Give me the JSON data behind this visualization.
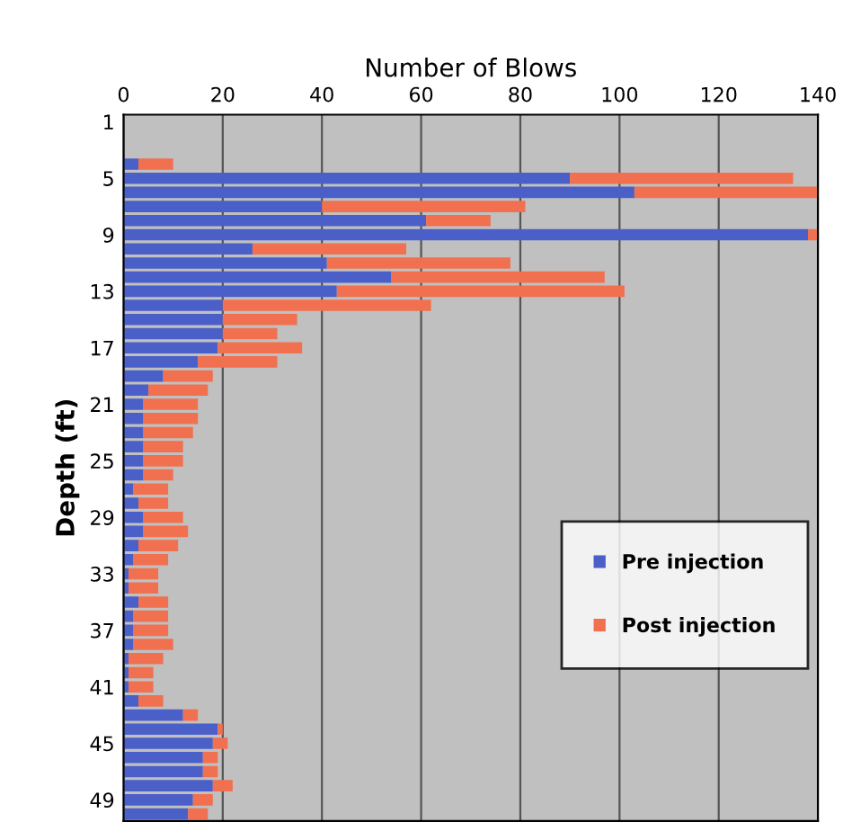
{
  "chart_data": {
    "type": "bar",
    "orientation": "horizontal",
    "stacked": true,
    "xlabel": "Number of Blows",
    "ylabel": "Depth (ft)",
    "categories": [
      "1",
      null,
      null,
      null,
      "5",
      null,
      null,
      null,
      "9",
      null,
      null,
      null,
      "13",
      null,
      null,
      null,
      "17",
      null,
      null,
      null,
      "21",
      null,
      null,
      null,
      "25",
      null,
      null,
      null,
      "29",
      null,
      null,
      null,
      "33",
      null,
      null,
      null,
      "37",
      null,
      null,
      null,
      "41",
      null,
      null,
      null,
      "45",
      null,
      null,
      null,
      "49",
      null
    ],
    "series": [
      {
        "name": "Pre injection",
        "color": "#4a5fc8",
        "values": [
          0,
          0,
          0,
          3,
          90,
          103,
          40,
          61,
          138,
          26,
          41,
          54,
          43,
          20,
          20,
          20,
          19,
          15,
          8,
          5,
          4,
          4,
          4,
          4,
          4,
          4,
          2,
          3,
          4,
          4,
          3,
          2,
          1,
          1,
          3,
          2,
          2,
          2,
          1,
          1,
          1,
          3,
          12,
          19,
          18,
          16,
          16,
          18,
          14,
          13
        ]
      },
      {
        "name": "Post injection",
        "color": "#f07050",
        "values": [
          0,
          0,
          0,
          7,
          45,
          37,
          41,
          13,
          2,
          31,
          37,
          43,
          58,
          42,
          15,
          11,
          17,
          16,
          10,
          12,
          11,
          11,
          10,
          8,
          8,
          6,
          7,
          6,
          8,
          9,
          8,
          7,
          6,
          6,
          6,
          7,
          7,
          8,
          7,
          5,
          5,
          5,
          3,
          1,
          3,
          3,
          3,
          4,
          4,
          4
        ]
      }
    ],
    "xlim": [
      0,
      140
    ],
    "xticks": [
      0,
      20,
      40,
      60,
      80,
      100,
      120,
      140
    ],
    "grid": "x",
    "legend": "right"
  }
}
